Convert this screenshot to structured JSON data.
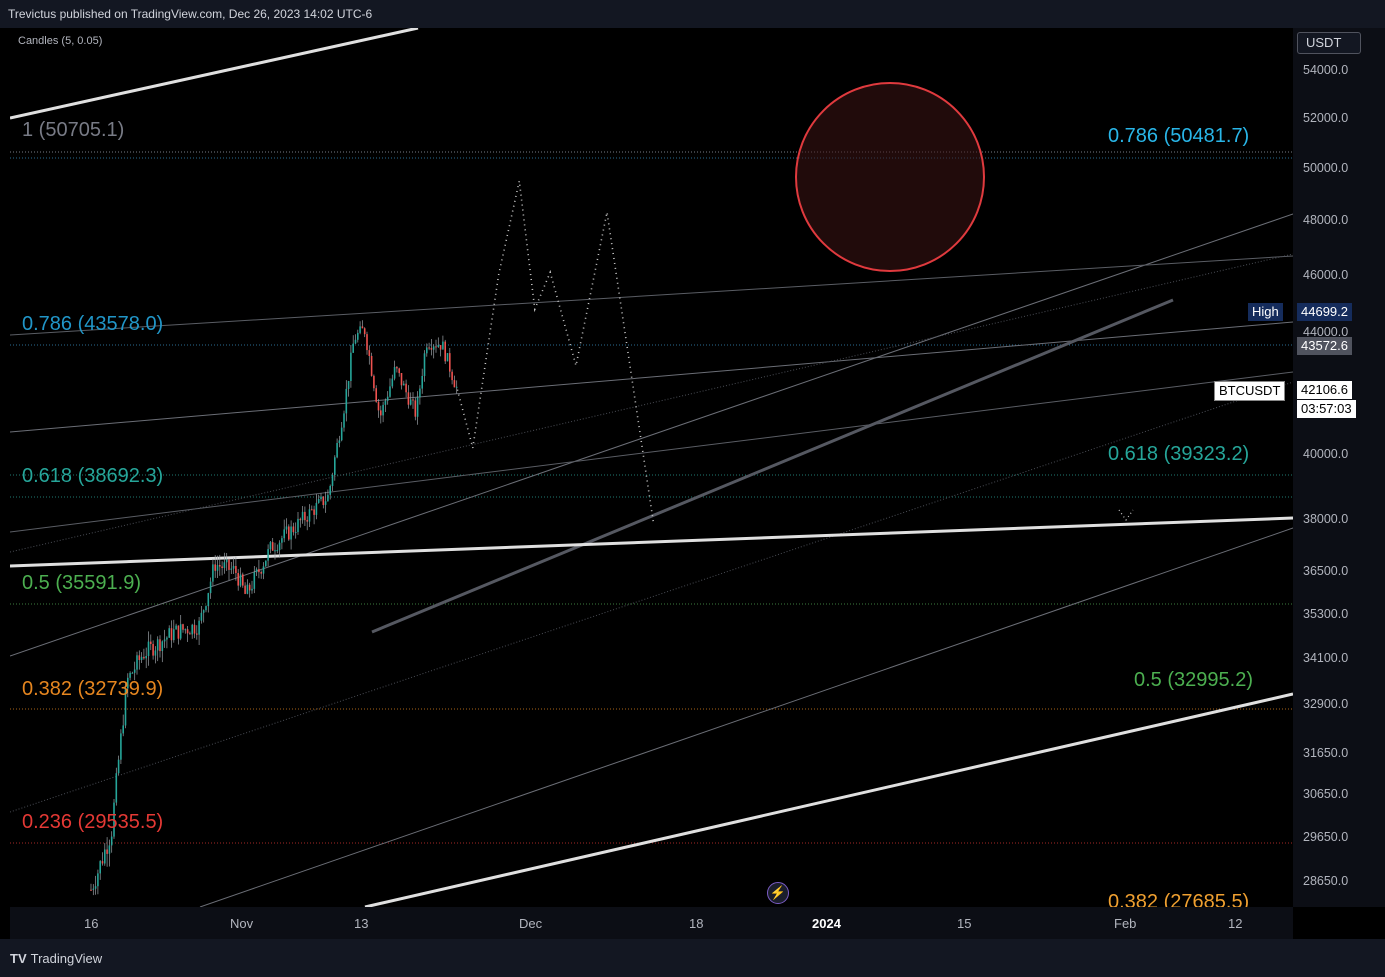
{
  "header": {
    "published": "Trevictus published on TradingView.com, Dec 26, 2023 14:02 UTC-6"
  },
  "indicator": "Candles (5, 0.05)",
  "currency": "USDT",
  "price_ticks": [
    "54000.0",
    "52000.0",
    "50000.0",
    "48000.0",
    "46000.0",
    "44000.0",
    "40000.0",
    "38000.0",
    "36500.0",
    "35300.0",
    "34100.0",
    "32900.0",
    "31650.0",
    "30650.0",
    "29650.0",
    "28650.0"
  ],
  "time_ticks": [
    "16",
    "Nov",
    "13",
    "Dec",
    "18",
    "2024",
    "15",
    "Feb",
    "12"
  ],
  "tags": {
    "high_label": "High",
    "high_value": "44699.2",
    "level_value": "43572.6",
    "symbol": "BTCUSDT",
    "last_price": "42106.6",
    "countdown": "03:57:03"
  },
  "fib_left": [
    {
      "text": "1 (50705.1)",
      "color": "#787b86"
    },
    {
      "text": "0.786 (43578.0)",
      "color": "#2196c8"
    },
    {
      "text": "0.618 (38692.3)",
      "color": "#26a69a"
    },
    {
      "text": "0.5 (35591.9)",
      "color": "#4caf50"
    },
    {
      "text": "0.382 (32739.9)",
      "color": "#e6861f"
    },
    {
      "text": "0.236 (29535.5)",
      "color": "#e53935"
    }
  ],
  "fib_right": [
    {
      "text": "0.786 (50481.7)",
      "color": "#29b6e8"
    },
    {
      "text": "0.618 (39323.2)",
      "color": "#26a69a"
    },
    {
      "text": "0.5 (32995.2)",
      "color": "#4caf50"
    },
    {
      "text": "0.382 (27685.5)",
      "color": "#f0a030"
    }
  ],
  "footer": {
    "brand": "TradingView"
  },
  "chart_data": {
    "type": "candlestick",
    "symbol": "BTCUSDT",
    "currency": "USDT",
    "last_price": 42106.6,
    "high": 44699.2,
    "ylim": [
      27900,
      55000
    ],
    "approx_close_path": [
      {
        "date": "2023-10-16",
        "close": 28400
      },
      {
        "date": "2023-10-20",
        "close": 29800
      },
      {
        "date": "2023-10-23",
        "close": 33500
      },
      {
        "date": "2023-10-26",
        "close": 34200
      },
      {
        "date": "2023-11-01",
        "close": 34800
      },
      {
        "date": "2023-11-06",
        "close": 35000
      },
      {
        "date": "2023-11-09",
        "close": 36700
      },
      {
        "date": "2023-11-13",
        "close": 36500
      },
      {
        "date": "2023-11-15",
        "close": 35800
      },
      {
        "date": "2023-11-20",
        "close": 37200
      },
      {
        "date": "2023-11-24",
        "close": 37700
      },
      {
        "date": "2023-12-01",
        "close": 38700
      },
      {
        "date": "2023-12-04",
        "close": 41500
      },
      {
        "date": "2023-12-06",
        "close": 43800
      },
      {
        "date": "2023-12-08",
        "close": 44100
      },
      {
        "date": "2023-12-11",
        "close": 41200
      },
      {
        "date": "2023-12-14",
        "close": 42800
      },
      {
        "date": "2023-12-18",
        "close": 41300
      },
      {
        "date": "2023-12-20",
        "close": 43700
      },
      {
        "date": "2023-12-23",
        "close": 43600
      },
      {
        "date": "2023-12-26",
        "close": 42106.6
      }
    ],
    "projection_path": [
      {
        "date": "2023-12-26",
        "price": 42106.6
      },
      {
        "date": "2023-12-29",
        "price": 40200
      },
      {
        "date": "2024-01-03",
        "price": 46000
      },
      {
        "date": "2024-01-07",
        "price": 49500
      },
      {
        "date": "2024-01-10",
        "price": 44800
      },
      {
        "date": "2024-01-13",
        "price": 46100
      },
      {
        "date": "2024-01-18",
        "price": 42900
      },
      {
        "date": "2024-01-24",
        "price": 48300
      },
      {
        "date": "2024-02-02",
        "price": 37900
      }
    ]
  }
}
